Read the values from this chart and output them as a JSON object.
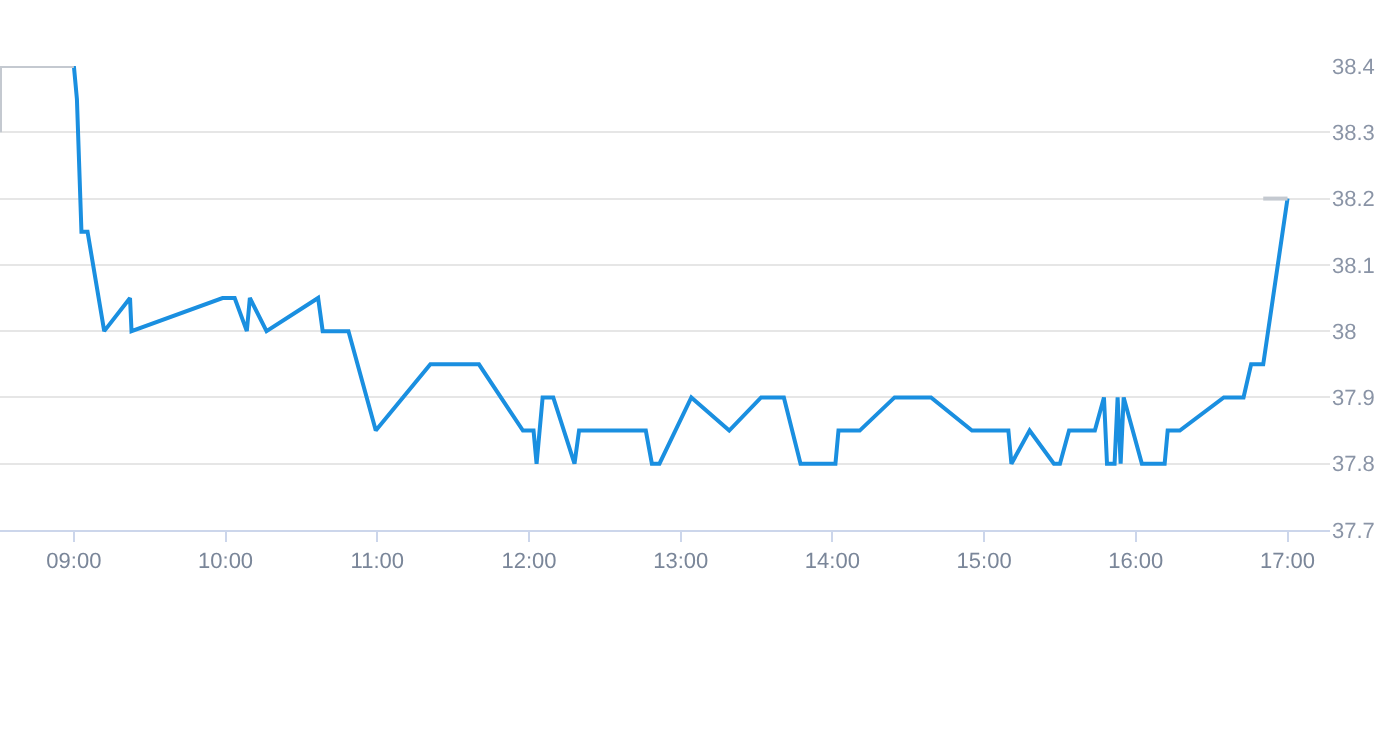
{
  "chart_data": {
    "type": "line",
    "xlim": [
      8.513,
      17.28
    ],
    "xticks": [
      {
        "value": 9,
        "label": "09:00"
      },
      {
        "value": 10,
        "label": "10:00"
      },
      {
        "value": 11,
        "label": "11:00"
      },
      {
        "value": 12,
        "label": "12:00"
      },
      {
        "value": 13,
        "label": "13:00"
      },
      {
        "value": 14,
        "label": "14:00"
      },
      {
        "value": 15,
        "label": "15:00"
      },
      {
        "value": 16,
        "label": "16:00"
      },
      {
        "value": 17,
        "label": "17:00"
      }
    ],
    "ylim": [
      37.7,
      38.4
    ],
    "yticks": [
      37.7,
      37.8,
      37.9,
      {
        "value": 38.0,
        "label": "38"
      },
      38.1,
      38.2,
      38.3,
      38.4
    ],
    "grid": "y",
    "marker": "none",
    "line_style": "solid",
    "series": [
      {
        "color": "#1a8fe0",
        "x": [
          9.0,
          9.02,
          9.05,
          9.09,
          9.2,
          9.37,
          9.38,
          9.98,
          10.06,
          10.14,
          10.16,
          10.27,
          10.61,
          10.64,
          10.81,
          10.99,
          11.35,
          11.67,
          11.96,
          12.03,
          12.05,
          12.09,
          12.16,
          12.3,
          12.33,
          12.77,
          12.81,
          12.86,
          13.07,
          13.32,
          13.53,
          13.68,
          13.79,
          14.02,
          14.04,
          14.18,
          14.41,
          14.65,
          14.92,
          15.16,
          15.18,
          15.3,
          15.46,
          15.5,
          15.56,
          15.73,
          15.79,
          15.81,
          15.86,
          15.88,
          15.9,
          15.92,
          16.04,
          16.19,
          16.21,
          16.29,
          16.58,
          16.71,
          16.76,
          16.84,
          17.0
        ],
        "values": [
          38.4,
          38.35,
          38.15,
          38.15,
          38.0,
          38.05,
          38.0,
          38.05,
          38.05,
          38.0,
          38.05,
          38.0,
          38.05,
          38.0,
          38.0,
          37.85,
          37.95,
          37.95,
          37.85,
          37.85,
          37.8,
          37.9,
          37.9,
          37.8,
          37.85,
          37.85,
          37.8,
          37.8,
          37.9,
          37.85,
          37.9,
          37.9,
          37.8,
          37.8,
          37.85,
          37.85,
          37.9,
          37.9,
          37.85,
          37.85,
          37.8,
          37.85,
          37.8,
          37.8,
          37.85,
          37.85,
          37.9,
          37.8,
          37.8,
          37.9,
          37.8,
          37.9,
          37.8,
          37.8,
          37.85,
          37.85,
          37.9,
          37.9,
          37.95,
          37.95,
          38.2
        ]
      },
      {
        "color": "#c4c9d0",
        "x": [
          8.513,
          8.513,
          9.0,
          null,
          16.84,
          17.0
        ],
        "values": [
          38.3,
          38.4,
          38.4,
          null,
          38.2,
          38.2
        ]
      }
    ]
  }
}
